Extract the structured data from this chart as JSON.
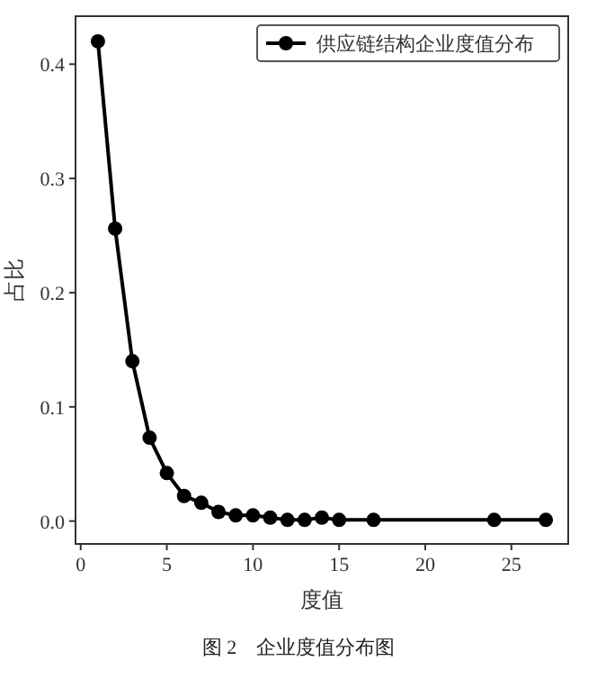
{
  "chart_data": {
    "type": "line",
    "xlabel": "度值",
    "ylabel": "占比",
    "annotations": [
      "图 2　企业度值分布图"
    ],
    "x": [
      1,
      2,
      3,
      4,
      5,
      6,
      7,
      8,
      9,
      10,
      11,
      12,
      13,
      14,
      15,
      17,
      24,
      27
    ],
    "series": [
      {
        "name": "供应链结构企业度值分布",
        "color": "#000000",
        "values": [
          0.42,
          0.256,
          0.14,
          0.073,
          0.042,
          0.022,
          0.016,
          0.008,
          0.005,
          0.005,
          0.003,
          0.001,
          0.001,
          0.003,
          0.001,
          0.001,
          0.001,
          0.001
        ]
      }
    ],
    "xlim": [
      -0.3,
      28.3
    ],
    "ylim": [
      -0.02,
      0.442
    ],
    "xticks": [
      0,
      5,
      10,
      15,
      20,
      25
    ],
    "yticks": [
      {
        "value": 0,
        "label": "0.0"
      },
      {
        "value": 0.1,
        "label": "0.1"
      },
      {
        "value": 0.2,
        "label": "0.2"
      },
      {
        "value": 0.3,
        "label": "0.3"
      },
      {
        "value": 0.4,
        "label": "0.4"
      }
    ],
    "legend": "top right",
    "marker": "circle",
    "line_style": "solid",
    "grid": false
  }
}
